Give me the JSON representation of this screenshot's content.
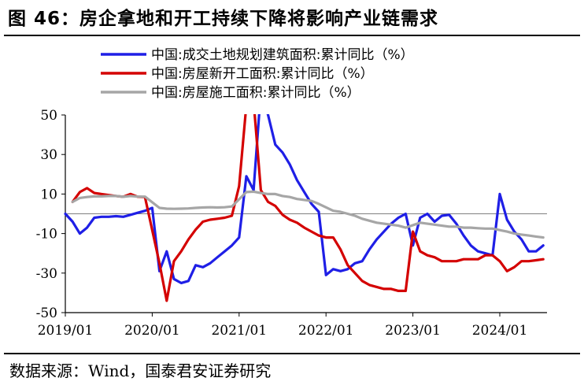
{
  "title": "图 46：房企拿地和开工持续下降将影响产业链需求",
  "source": "数据来源：Wind，国泰君安证券研究",
  "chart_data": {
    "type": "line",
    "title": "图 46：房企拿地和开工持续下降将影响产业链需求",
    "xlabel": "",
    "ylabel": "",
    "x_ticks": [
      "2019/01",
      "2020/01",
      "2021/01",
      "2022/01",
      "2023/01",
      "2024/01"
    ],
    "y_ticks": [
      50,
      30,
      10,
      -10,
      -30,
      -50
    ],
    "ylim": [
      -50,
      50
    ],
    "legend_position": "top",
    "grid": false,
    "series": [
      {
        "name": "中国:成交土地规划建筑面积:累计同比（%）",
        "color": "#1f1fe6",
        "points": [
          [
            "2019-01",
            0
          ],
          [
            "2019-02",
            -4
          ],
          [
            "2019-03",
            -10
          ],
          [
            "2019-04",
            -7
          ],
          [
            "2019-05",
            -2
          ],
          [
            "2019-06",
            -1.5
          ],
          [
            "2019-07",
            -1.5
          ],
          [
            "2019-08",
            -1.2
          ],
          [
            "2019-09",
            -1.5
          ],
          [
            "2019-10",
            -0.5
          ],
          [
            "2019-11",
            0.5
          ],
          [
            "2019-12",
            1.5
          ],
          [
            "2020-01",
            3
          ],
          [
            "2020-02",
            -29
          ],
          [
            "2020-03",
            -19
          ],
          [
            "2020-04",
            -33
          ],
          [
            "2020-05",
            -35
          ],
          [
            "2020-06",
            -34
          ],
          [
            "2020-07",
            -26
          ],
          [
            "2020-08",
            -27
          ],
          [
            "2020-09",
            -25
          ],
          [
            "2020-10",
            -22
          ],
          [
            "2020-11",
            -19
          ],
          [
            "2020-12",
            -16
          ],
          [
            "2021-01",
            -12
          ],
          [
            "2021-02",
            19
          ],
          [
            "2021-03",
            12
          ],
          [
            "2021-04",
            62
          ],
          [
            "2021-05",
            50
          ],
          [
            "2021-06",
            35
          ],
          [
            "2021-07",
            31
          ],
          [
            "2021-08",
            25
          ],
          [
            "2021-09",
            17
          ],
          [
            "2021-10",
            11
          ],
          [
            "2021-11",
            5
          ],
          [
            "2021-12",
            1
          ],
          [
            "2022-01",
            -31
          ],
          [
            "2022-02",
            -28
          ],
          [
            "2022-03",
            -29
          ],
          [
            "2022-04",
            -28
          ],
          [
            "2022-05",
            -25
          ],
          [
            "2022-06",
            -24
          ],
          [
            "2022-07",
            -18
          ],
          [
            "2022-08",
            -13
          ],
          [
            "2022-09",
            -9
          ],
          [
            "2022-10",
            -5
          ],
          [
            "2022-11",
            -2
          ],
          [
            "2022-12",
            0
          ],
          [
            "2023-01",
            -16
          ],
          [
            "2023-02",
            -2
          ],
          [
            "2023-03",
            0
          ],
          [
            "2023-04",
            -4
          ],
          [
            "2023-05",
            -1
          ],
          [
            "2023-06",
            -0.5
          ],
          [
            "2023-07",
            -5
          ],
          [
            "2023-08",
            -11
          ],
          [
            "2023-09",
            -16
          ],
          [
            "2023-10",
            -19
          ],
          [
            "2023-11",
            -20
          ],
          [
            "2023-12",
            -21
          ],
          [
            "2024-01",
            10
          ],
          [
            "2024-02",
            -3
          ],
          [
            "2024-03",
            -9
          ],
          [
            "2024-04",
            -13
          ],
          [
            "2024-05",
            -19
          ],
          [
            "2024-06",
            -19
          ],
          [
            "2024-07",
            -16
          ]
        ]
      },
      {
        "name": "中国:房屋新开工面积:累计同比（%）",
        "color": "#d40000",
        "points": [
          [
            "2019-02",
            6
          ],
          [
            "2019-03",
            11
          ],
          [
            "2019-04",
            13
          ],
          [
            "2019-05",
            10.5
          ],
          [
            "2019-06",
            10
          ],
          [
            "2019-07",
            9.5
          ],
          [
            "2019-08",
            9
          ],
          [
            "2019-09",
            8.6
          ],
          [
            "2019-10",
            10
          ],
          [
            "2019-11",
            8.6
          ],
          [
            "2019-12",
            8.5
          ],
          [
            "2020-02",
            -25
          ],
          [
            "2020-03",
            -44
          ],
          [
            "2020-04",
            -24
          ],
          [
            "2020-05",
            -19
          ],
          [
            "2020-06",
            -13
          ],
          [
            "2020-07",
            -8
          ],
          [
            "2020-08",
            -4
          ],
          [
            "2020-09",
            -3
          ],
          [
            "2020-10",
            -2.5
          ],
          [
            "2020-11",
            -2
          ],
          [
            "2020-12",
            -1
          ],
          [
            "2021-01",
            14
          ],
          [
            "2021-02",
            55
          ],
          [
            "2021-03",
            57
          ],
          [
            "2021-04",
            12
          ],
          [
            "2021-05",
            6
          ],
          [
            "2021-06",
            4
          ],
          [
            "2021-07",
            -0.5
          ],
          [
            "2021-08",
            -3
          ],
          [
            "2021-09",
            -4.5
          ],
          [
            "2021-10",
            -7
          ],
          [
            "2021-11",
            -9
          ],
          [
            "2021-12",
            -11
          ],
          [
            "2022-01",
            -12
          ],
          [
            "2022-02",
            -12
          ],
          [
            "2022-03",
            -18
          ],
          [
            "2022-04",
            -26
          ],
          [
            "2022-05",
            -30
          ],
          [
            "2022-06",
            -34
          ],
          [
            "2022-07",
            -36
          ],
          [
            "2022-08",
            -37
          ],
          [
            "2022-09",
            -38
          ],
          [
            "2022-10",
            -38
          ],
          [
            "2022-11",
            -39
          ],
          [
            "2022-12",
            -39
          ],
          [
            "2023-01",
            -9
          ],
          [
            "2023-02",
            -19
          ],
          [
            "2023-03",
            -21
          ],
          [
            "2023-04",
            -22
          ],
          [
            "2023-05",
            -24
          ],
          [
            "2023-06",
            -24
          ],
          [
            "2023-07",
            -24
          ],
          [
            "2023-08",
            -23
          ],
          [
            "2023-09",
            -23
          ],
          [
            "2023-10",
            -23
          ],
          [
            "2023-11",
            -21
          ],
          [
            "2023-12",
            -21
          ],
          [
            "2024-01",
            -24
          ],
          [
            "2024-02",
            -29
          ],
          [
            "2024-03",
            -27
          ],
          [
            "2024-04",
            -24
          ],
          [
            "2024-05",
            -24
          ],
          [
            "2024-06",
            -23.5
          ],
          [
            "2024-07",
            -23
          ]
        ]
      },
      {
        "name": "中国:房屋施工面积:累计同比（%）",
        "color": "#a6a6a6",
        "points": [
          [
            "2019-02",
            6
          ],
          [
            "2019-03",
            8
          ],
          [
            "2019-04",
            8.5
          ],
          [
            "2019-05",
            8.8
          ],
          [
            "2019-06",
            8.8
          ],
          [
            "2019-07",
            9
          ],
          [
            "2019-08",
            9
          ],
          [
            "2019-09",
            8.6
          ],
          [
            "2019-10",
            9
          ],
          [
            "2019-11",
            8.7
          ],
          [
            "2019-12",
            8.7
          ],
          [
            "2020-02",
            3
          ],
          [
            "2020-03",
            2.6
          ],
          [
            "2020-04",
            2.5
          ],
          [
            "2020-05",
            2.6
          ],
          [
            "2020-06",
            2.7
          ],
          [
            "2020-07",
            3
          ],
          [
            "2020-08",
            3.2
          ],
          [
            "2020-09",
            3.3
          ],
          [
            "2020-10",
            3.2
          ],
          [
            "2020-11",
            3.3
          ],
          [
            "2020-12",
            3.7
          ],
          [
            "2021-02",
            11
          ],
          [
            "2021-03",
            11.2
          ],
          [
            "2021-04",
            10.5
          ],
          [
            "2021-05",
            10
          ],
          [
            "2021-06",
            10
          ],
          [
            "2021-07",
            9
          ],
          [
            "2021-08",
            8.5
          ],
          [
            "2021-09",
            7.5
          ],
          [
            "2021-10",
            7
          ],
          [
            "2021-11",
            6.5
          ],
          [
            "2021-12",
            5
          ],
          [
            "2022-02",
            1.5
          ],
          [
            "2022-03",
            1
          ],
          [
            "2022-04",
            0
          ],
          [
            "2022-05",
            -1
          ],
          [
            "2022-06",
            -2.5
          ],
          [
            "2022-07",
            -3.5
          ],
          [
            "2022-08",
            -4.5
          ],
          [
            "2022-09",
            -5
          ],
          [
            "2022-10",
            -5.5
          ],
          [
            "2022-11",
            -6
          ],
          [
            "2022-12",
            -7
          ],
          [
            "2023-02",
            -4.5
          ],
          [
            "2023-03",
            -5
          ],
          [
            "2023-04",
            -5.5
          ],
          [
            "2023-05",
            -6
          ],
          [
            "2023-06",
            -6.5
          ],
          [
            "2023-07",
            -6.5
          ],
          [
            "2023-08",
            -7
          ],
          [
            "2023-09",
            -7
          ],
          [
            "2023-10",
            -7.3
          ],
          [
            "2023-11",
            -7.5
          ],
          [
            "2023-12",
            -7.5
          ],
          [
            "2024-02",
            -9
          ],
          [
            "2024-03",
            -10
          ],
          [
            "2024-04",
            -10.5
          ],
          [
            "2024-05",
            -11
          ],
          [
            "2024-06",
            -11.5
          ],
          [
            "2024-07",
            -12
          ]
        ]
      }
    ]
  }
}
